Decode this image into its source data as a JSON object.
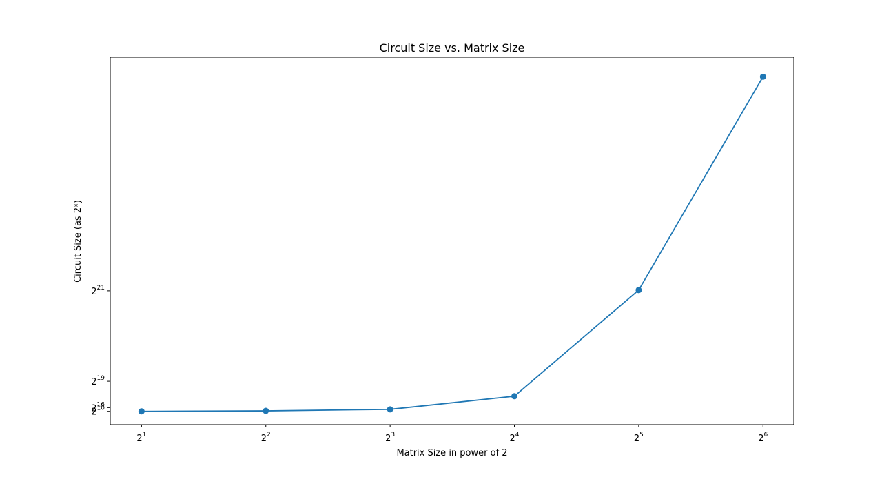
{
  "chart_data": {
    "type": "line",
    "title": "Circuit Size vs. Matrix Size",
    "xlabel": "Matrix Size in power of 2",
    "ylabel": "Circuit Size (as 2ˣ)",
    "x_scale": "log2",
    "y_scale": "log2",
    "grid": false,
    "legend": "none",
    "color": "#1f77b4",
    "x": [
      2,
      4,
      8,
      16,
      32,
      64
    ],
    "y": [
      1024,
      9300,
      36000,
      264000,
      2110000,
      5820000
    ],
    "xlim": [
      1.68,
      76
    ],
    "ylim": [
      -230000,
      6160000
    ],
    "x_ticks": [
      {
        "value": 2,
        "base": "2",
        "exp": "1"
      },
      {
        "value": 4,
        "base": "2",
        "exp": "2"
      },
      {
        "value": 8,
        "base": "2",
        "exp": "3"
      },
      {
        "value": 16,
        "base": "2",
        "exp": "4"
      },
      {
        "value": 32,
        "base": "2",
        "exp": "5"
      },
      {
        "value": 64,
        "base": "2",
        "exp": "6"
      }
    ],
    "y_ticks": [
      {
        "value": 1024,
        "base": "2",
        "exp": "10"
      },
      {
        "value": 65536,
        "base": "2",
        "exp": "16"
      },
      {
        "value": 524288,
        "base": "2",
        "exp": "19"
      },
      {
        "value": 2097152,
        "base": "2",
        "exp": "21"
      }
    ]
  }
}
